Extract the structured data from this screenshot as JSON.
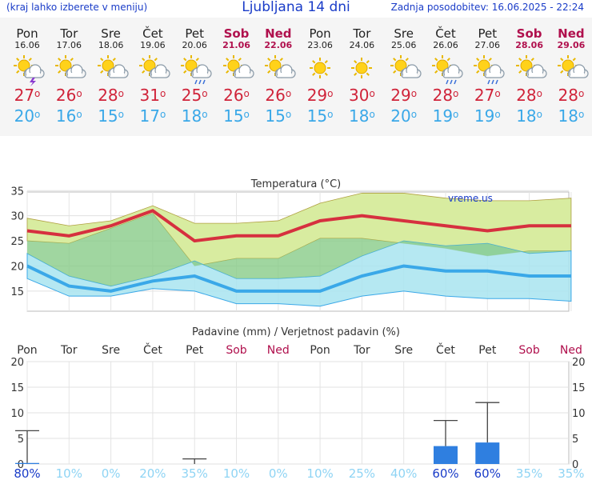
{
  "header": {
    "left_note": "(kraj lahko izberete v meniju)",
    "title": "Ljubljana 14 dni",
    "updated": "Zadnja posodobitev: 16.06.2025 - 22:24"
  },
  "forecast": [
    {
      "day": "Pon",
      "date": "16.06",
      "weekend": false,
      "icon": "sun-thunderstorm-icon",
      "tmax": "27",
      "tmin": "20"
    },
    {
      "day": "Tor",
      "date": "17.06",
      "weekend": false,
      "icon": "sun-cloud-icon",
      "tmax": "26",
      "tmin": "16"
    },
    {
      "day": "Sre",
      "date": "18.06",
      "weekend": false,
      "icon": "sun-cloud-icon",
      "tmax": "28",
      "tmin": "15"
    },
    {
      "day": "Čet",
      "date": "19.06",
      "weekend": false,
      "icon": "sun-cloud-icon",
      "tmax": "31",
      "tmin": "17"
    },
    {
      "day": "Pet",
      "date": "20.06",
      "weekend": false,
      "icon": "sun-cloud-rain-icon",
      "tmax": "25",
      "tmin": "18"
    },
    {
      "day": "Sob",
      "date": "21.06",
      "weekend": true,
      "icon": "sun-cloud-icon",
      "tmax": "26",
      "tmin": "15"
    },
    {
      "day": "Ned",
      "date": "22.06",
      "weekend": true,
      "icon": "sun-cloud-icon",
      "tmax": "26",
      "tmin": "15"
    },
    {
      "day": "Pon",
      "date": "23.06",
      "weekend": false,
      "icon": "sun-icon",
      "tmax": "29",
      "tmin": "15"
    },
    {
      "day": "Tor",
      "date": "24.06",
      "weekend": false,
      "icon": "sun-icon",
      "tmax": "30",
      "tmin": "18"
    },
    {
      "day": "Sre",
      "date": "25.06",
      "weekend": false,
      "icon": "sun-cloud-icon",
      "tmax": "29",
      "tmin": "20"
    },
    {
      "day": "Čet",
      "date": "26.06",
      "weekend": false,
      "icon": "sun-cloud-rain-icon",
      "tmax": "28",
      "tmin": "19"
    },
    {
      "day": "Pet",
      "date": "27.06",
      "weekend": false,
      "icon": "sun-cloud-rain-icon",
      "tmax": "27",
      "tmin": "19"
    },
    {
      "day": "Sob",
      "date": "28.06",
      "weekend": true,
      "icon": "sun-cloud-icon",
      "tmax": "28",
      "tmin": "18"
    },
    {
      "day": "Ned",
      "date": "29.06",
      "weekend": true,
      "icon": "sun-cloud-icon",
      "tmax": "28",
      "tmin": "18"
    }
  ],
  "degree_symbol": "o",
  "colors": {
    "max_line": "#d6303f",
    "min_line": "#3aa8e8",
    "max_band": "#d8eca0",
    "min_band": "#a8e4f0",
    "overlap_band": "#88cc88",
    "bar": "#2f7fe0",
    "weekend": "#b0104d",
    "prob_high": "#1a3cc8",
    "prob_low": "#8fd4f4"
  },
  "chart_data": [
    {
      "type": "line",
      "title": "Temperatura (°C)",
      "watermark": "vreme.us",
      "ylim": [
        11,
        36
      ],
      "yticks": [
        15,
        20,
        25,
        30,
        35
      ],
      "grid": true,
      "x": [
        0,
        1,
        2,
        3,
        4,
        5,
        6,
        7,
        8,
        9,
        10,
        11,
        12,
        13
      ],
      "series": [
        {
          "role": "max",
          "values": [
            27,
            26,
            28,
            31,
            25,
            26,
            26,
            29,
            30,
            29,
            28,
            27,
            28,
            28
          ]
        },
        {
          "role": "min",
          "values": [
            20,
            16,
            15,
            17,
            18,
            15,
            15,
            15,
            18,
            20,
            19,
            19,
            18,
            18
          ]
        }
      ],
      "bands": [
        {
          "role": "max_range",
          "upper": [
            29.5,
            28,
            29,
            32,
            28.5,
            28.5,
            29,
            32.5,
            34.5,
            34.5,
            33.5,
            33,
            33,
            33.5
          ],
          "lower": [
            25,
            24.5,
            27.5,
            30.5,
            20,
            21.5,
            21.5,
            25.5,
            25.5,
            24.5,
            23.5,
            22,
            23,
            23
          ]
        },
        {
          "role": "min_range",
          "upper": [
            22.5,
            18,
            16,
            18,
            21,
            17.5,
            17.5,
            18,
            22,
            25,
            24,
            24.5,
            22.5,
            23
          ],
          "lower": [
            17.5,
            14,
            14,
            15.5,
            15,
            12.5,
            12.5,
            12,
            14,
            15,
            14,
            13.5,
            13.5,
            13
          ]
        }
      ]
    },
    {
      "type": "bar",
      "title": "Padavine (mm) / Verjetnost padavin (%)",
      "categories": [
        "Pon",
        "Tor",
        "Sre",
        "Čet",
        "Pet",
        "Sob",
        "Ned",
        "Pon",
        "Tor",
        "Sre",
        "Čet",
        "Pet",
        "Sob",
        "Ned"
      ],
      "weekend": [
        false,
        false,
        false,
        false,
        false,
        true,
        true,
        false,
        false,
        false,
        false,
        false,
        true,
        true
      ],
      "ylim": [
        0,
        20
      ],
      "yticks": [
        0,
        5,
        10,
        15,
        20
      ],
      "values": [
        0.2,
        0,
        0,
        0,
        0,
        0,
        0,
        0,
        0,
        0,
        3.5,
        4.2,
        0,
        0
      ],
      "error_upper": [
        6.5,
        0,
        0,
        0,
        1,
        0,
        0,
        0,
        0,
        0,
        8.5,
        12,
        0,
        0
      ],
      "probability": [
        "80%",
        "10%",
        "0%",
        "20%",
        "35%",
        "10%",
        "0%",
        "10%",
        "25%",
        "40%",
        "60%",
        "60%",
        "35%",
        "35%"
      ]
    }
  ]
}
